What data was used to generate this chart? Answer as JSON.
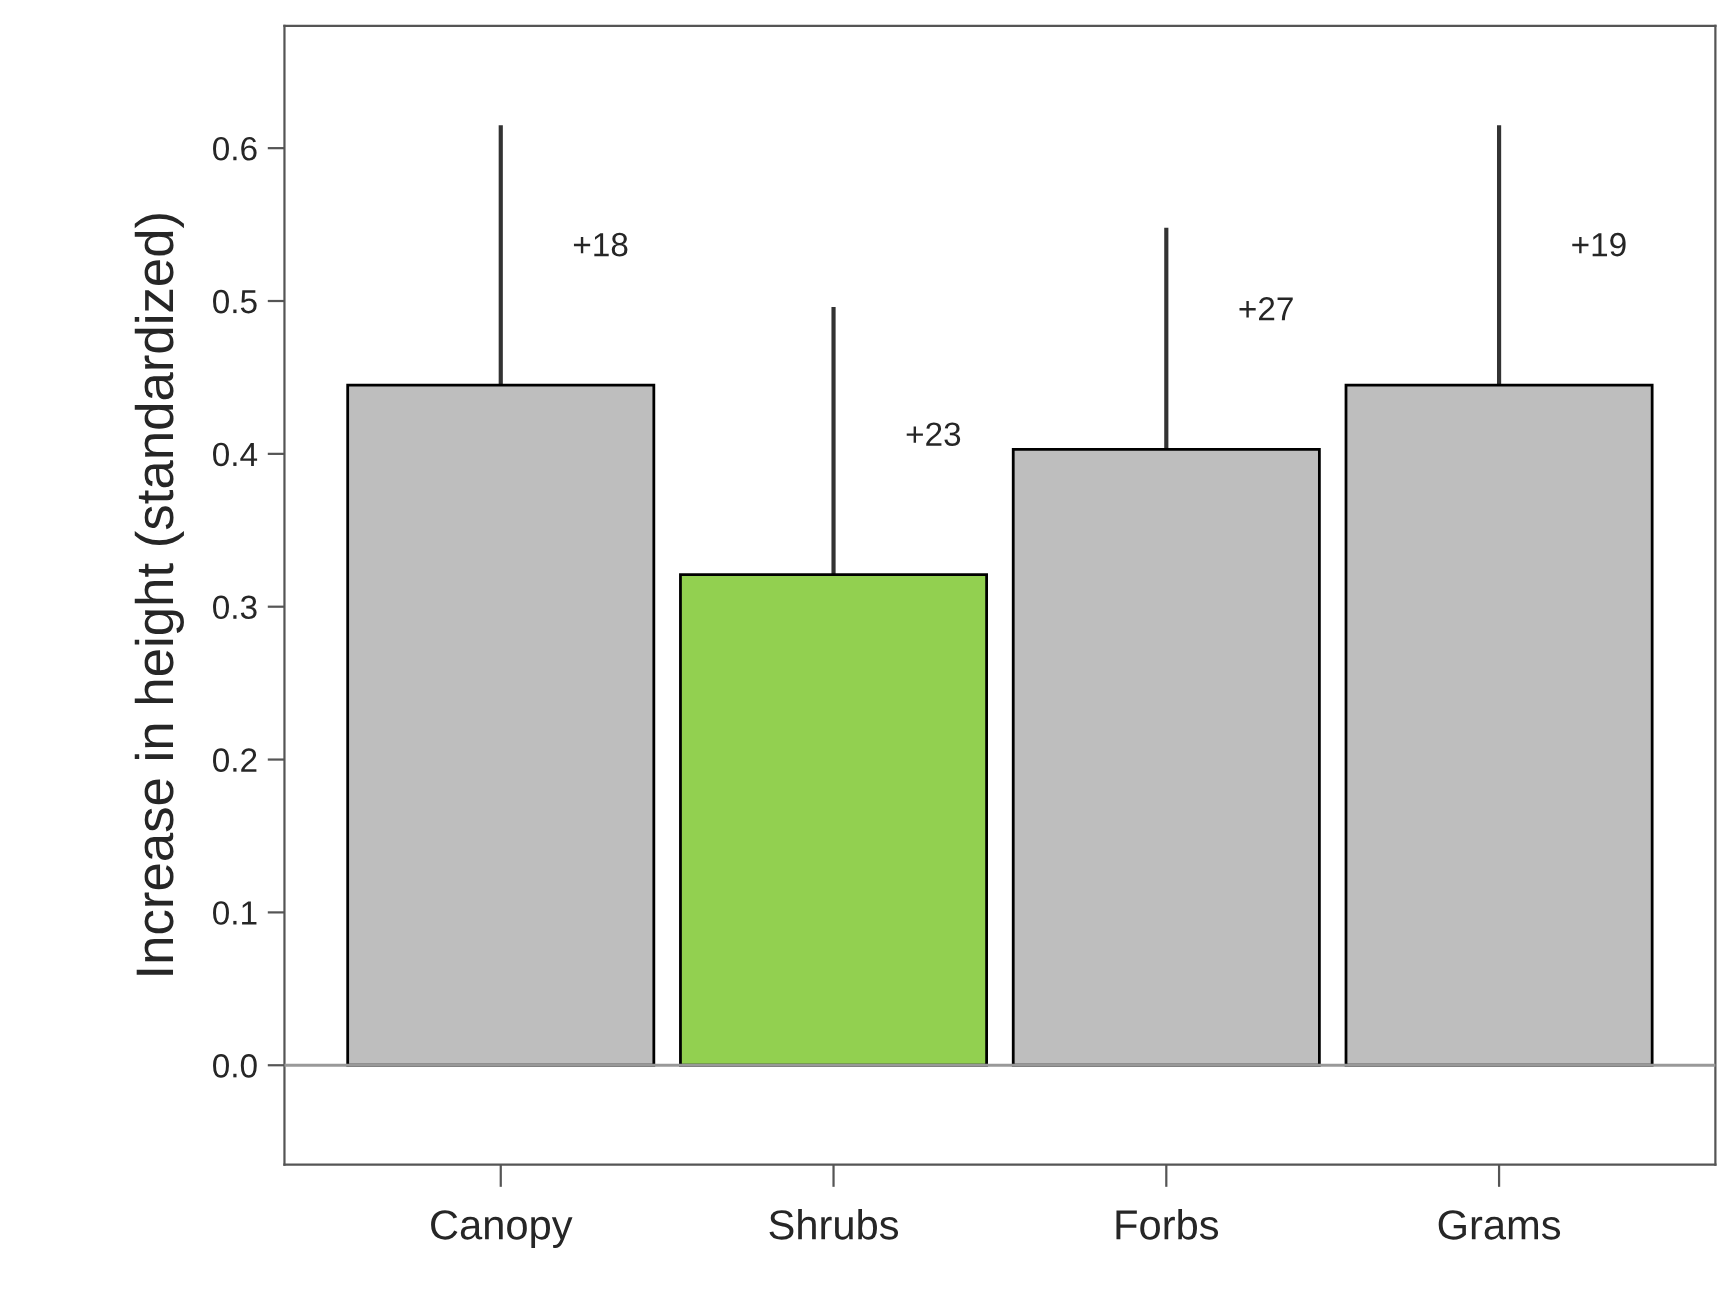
{
  "chart_data": {
    "type": "bar",
    "ylabel": "Increase in height (standardized)",
    "categories": [
      "Canopy",
      "Shrubs",
      "Forbs",
      "Grams"
    ],
    "values": [
      0.445,
      0.321,
      0.403,
      0.445
    ],
    "colors": [
      "#bebebe",
      "#92d050",
      "#bebebe",
      "#bebebe"
    ],
    "errors": [
      [
        0.445,
        0.615
      ],
      [
        0.321,
        0.496
      ],
      [
        0.403,
        0.548
      ],
      [
        0.445,
        0.615
      ]
    ],
    "ylim": [
      -0.065,
      0.68
    ],
    "yticks": [
      {
        "value": 0,
        "label": "0.0"
      },
      0.1,
      0.2,
      0.3,
      0.4,
      0.5,
      0.6
    ],
    "ref_lines": [
      {
        "axis": "y",
        "value": 0,
        "color": "#999999"
      }
    ],
    "annotations": [
      "+18",
      "+23",
      "+27",
      "+19"
    ],
    "grid": false,
    "legend": false
  }
}
